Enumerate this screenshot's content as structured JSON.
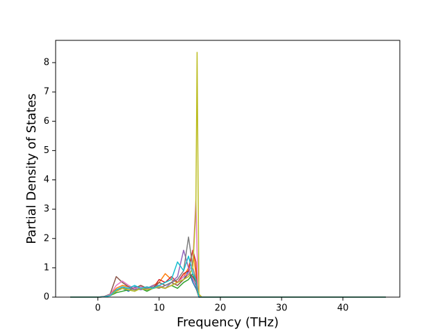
{
  "chart_data": {
    "type": "line",
    "xlabel": "Frequency (THz)",
    "ylabel": "Partial Density of States",
    "x": [
      -4.5,
      0,
      1,
      2,
      3,
      4,
      5,
      6,
      7,
      8,
      9,
      10,
      11,
      12,
      13,
      14,
      14.8,
      15.5,
      16,
      16.2,
      16.5,
      17,
      20,
      47
    ],
    "xlim": [
      -6.9,
      49.3
    ],
    "ylim": [
      0,
      8.76
    ],
    "xticks": [
      0,
      10,
      20,
      30,
      40
    ],
    "yticks": [
      0,
      1,
      2,
      3,
      4,
      5,
      6,
      7,
      8
    ],
    "series": [
      {
        "color": "#1f77b4",
        "values": [
          0,
          0,
          0.02,
          0.1,
          0.25,
          0.3,
          0.2,
          0.35,
          0.3,
          0.25,
          0.3,
          0.35,
          0.3,
          0.4,
          0.5,
          0.6,
          0.9,
          0.5,
          0.3,
          0.2,
          0.05,
          0,
          0,
          0
        ]
      },
      {
        "color": "#ff7f0e",
        "values": [
          0,
          0,
          0.01,
          0.08,
          0.3,
          0.4,
          0.35,
          0.3,
          0.4,
          0.3,
          0.4,
          0.5,
          0.8,
          0.6,
          0.5,
          0.7,
          1.0,
          1.6,
          0.8,
          0.3,
          0.05,
          0,
          0,
          0
        ]
      },
      {
        "color": "#2ca02c",
        "values": [
          0,
          0,
          0.01,
          0.05,
          0.15,
          0.2,
          0.25,
          0.2,
          0.3,
          0.2,
          0.3,
          0.35,
          0.3,
          0.4,
          0.3,
          0.5,
          0.6,
          0.8,
          0.5,
          0.2,
          0,
          0,
          0,
          0
        ]
      },
      {
        "color": "#d62728",
        "values": [
          0,
          0,
          0.01,
          0.06,
          0.2,
          0.3,
          0.3,
          0.25,
          0.3,
          0.35,
          0.3,
          0.6,
          0.5,
          0.7,
          0.5,
          0.8,
          0.9,
          1.6,
          1.2,
          0.4,
          0,
          0,
          0,
          0
        ]
      },
      {
        "color": "#9467bd",
        "values": [
          0,
          0,
          0.01,
          0.05,
          0.2,
          0.35,
          0.3,
          0.3,
          0.25,
          0.3,
          0.4,
          0.4,
          0.3,
          0.5,
          0.7,
          1.6,
          1.0,
          0.6,
          0.4,
          0.2,
          0,
          0,
          0,
          0
        ]
      },
      {
        "color": "#8c564b",
        "values": [
          0,
          0,
          0.02,
          0.1,
          0.7,
          0.5,
          0.35,
          0.3,
          0.4,
          0.3,
          0.3,
          0.5,
          0.4,
          0.5,
          0.4,
          0.6,
          0.8,
          0.7,
          0.5,
          0.2,
          0,
          0,
          0,
          0
        ]
      },
      {
        "color": "#e377c2",
        "values": [
          0,
          0,
          0.01,
          0.08,
          0.4,
          0.55,
          0.4,
          0.3,
          0.35,
          0.3,
          0.3,
          0.4,
          0.3,
          0.4,
          0.5,
          0.7,
          0.8,
          1.2,
          3.3,
          1.5,
          0.05,
          0,
          0,
          0
        ]
      },
      {
        "color": "#7f7f7f",
        "values": [
          0,
          0,
          0.01,
          0.05,
          0.2,
          0.3,
          0.3,
          0.25,
          0.3,
          0.3,
          0.35,
          0.3,
          0.4,
          0.5,
          0.6,
          0.9,
          2.05,
          1.0,
          0.6,
          0.3,
          0,
          0,
          0,
          0
        ]
      },
      {
        "color": "#bcbd22",
        "values": [
          0,
          0,
          0.01,
          0.05,
          0.2,
          0.3,
          0.25,
          0.2,
          0.3,
          0.25,
          0.3,
          0.35,
          0.3,
          0.4,
          0.5,
          0.6,
          0.7,
          1.0,
          3.0,
          8.35,
          0.1,
          0,
          0,
          0
        ]
      },
      {
        "color": "#17becf",
        "values": [
          0,
          0,
          0.01,
          0.05,
          0.25,
          0.35,
          0.3,
          0.4,
          0.3,
          0.35,
          0.3,
          0.4,
          0.5,
          0.6,
          1.2,
          0.9,
          1.4,
          0.8,
          0.6,
          0.3,
          0,
          0,
          0,
          0
        ]
      }
    ]
  }
}
